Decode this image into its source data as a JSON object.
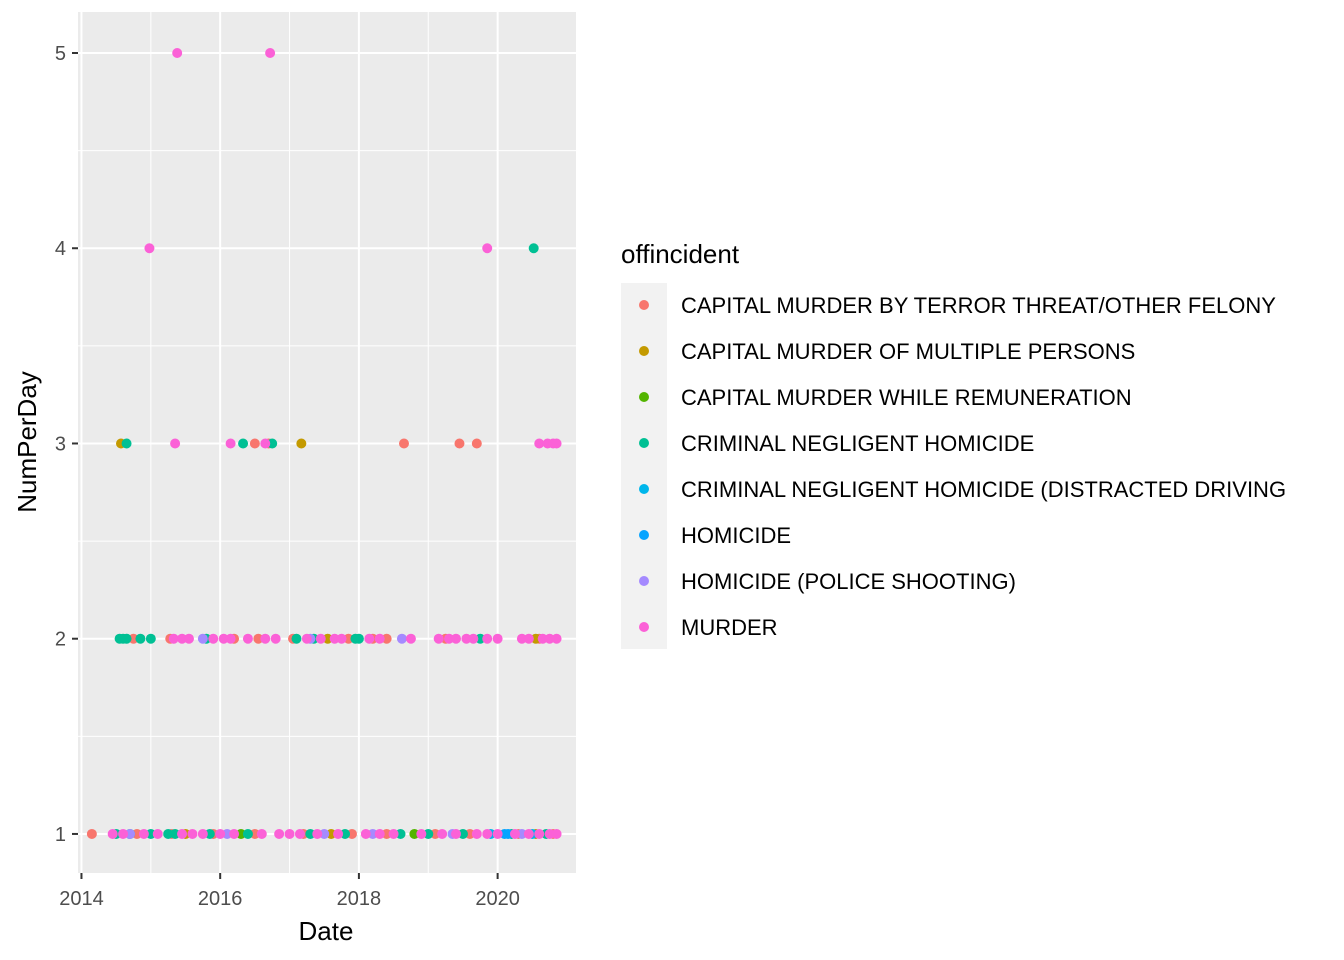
{
  "chart_data": {
    "type": "scatter",
    "xlabel": "Date",
    "ylabel": "NumPerDay",
    "x_ticks": [
      "2014",
      "2016",
      "2018",
      "2020"
    ],
    "y_ticks": [
      "1",
      "2",
      "3",
      "4",
      "5"
    ],
    "xlim": [
      2013.95,
      2021.13
    ],
    "ylim": [
      0.8,
      5.21
    ],
    "grid": true,
    "legend_position": "right",
    "legend_title": "offincident",
    "series": [
      {
        "name": "CAPITAL MURDER BY TERROR THREAT/OTHER FELONY",
        "color": "#F8766D",
        "points": [
          [
            2014.15,
            1
          ],
          [
            2014.8,
            1
          ],
          [
            2015.3,
            1
          ],
          [
            2015.9,
            1
          ],
          [
            2016.5,
            1
          ],
          [
            2017.2,
            1
          ],
          [
            2017.9,
            1
          ],
          [
            2018.4,
            1
          ],
          [
            2019.1,
            1
          ],
          [
            2019.6,
            1
          ],
          [
            2020.3,
            1
          ],
          [
            2020.8,
            1
          ],
          [
            2014.75,
            2
          ],
          [
            2015.28,
            2
          ],
          [
            2016.2,
            2
          ],
          [
            2016.55,
            2
          ],
          [
            2017.05,
            2
          ],
          [
            2017.85,
            2
          ],
          [
            2018.2,
            2
          ],
          [
            2018.4,
            2
          ],
          [
            2019.25,
            2
          ],
          [
            2020.6,
            2
          ],
          [
            2016.5,
            3
          ],
          [
            2016.7,
            3
          ],
          [
            2018.65,
            3
          ],
          [
            2019.45,
            3
          ],
          [
            2019.7,
            3
          ]
        ]
      },
      {
        "name": "CAPITAL MURDER OF MULTIPLE PERSONS",
        "color": "#C49A00",
        "points": [
          [
            2015.5,
            1
          ],
          [
            2017.6,
            1
          ],
          [
            2020.55,
            1
          ],
          [
            2017.55,
            2
          ],
          [
            2020.55,
            2
          ],
          [
            2014.57,
            3
          ],
          [
            2017.17,
            3
          ]
        ]
      },
      {
        "name": "CAPITAL MURDER WHILE REMUNERATION",
        "color": "#53B400",
        "points": [
          [
            2016.3,
            1
          ],
          [
            2018.8,
            1
          ]
        ]
      },
      {
        "name": "CRIMINAL NEGLIGENT HOMICIDE",
        "color": "#00C094",
        "points": [
          [
            2014.5,
            1
          ],
          [
            2014.7,
            1
          ],
          [
            2015.0,
            1
          ],
          [
            2015.25,
            1
          ],
          [
            2015.35,
            1
          ],
          [
            2015.85,
            1
          ],
          [
            2016.4,
            1
          ],
          [
            2017.3,
            1
          ],
          [
            2017.8,
            1
          ],
          [
            2018.6,
            1
          ],
          [
            2019.0,
            1
          ],
          [
            2019.5,
            1
          ],
          [
            2020.2,
            1
          ],
          [
            2020.7,
            1
          ],
          [
            2014.55,
            2
          ],
          [
            2014.6,
            2
          ],
          [
            2014.65,
            2
          ],
          [
            2014.85,
            2
          ],
          [
            2015.0,
            2
          ],
          [
            2015.8,
            2
          ],
          [
            2017.1,
            2
          ],
          [
            2017.35,
            2
          ],
          [
            2017.95,
            2
          ],
          [
            2018.0,
            2
          ],
          [
            2019.75,
            2
          ],
          [
            2014.65,
            3
          ],
          [
            2016.33,
            3
          ],
          [
            2016.75,
            3
          ],
          [
            2020.52,
            4
          ]
        ]
      },
      {
        "name": "CRIMINAL NEGLIGENT HOMICIDE (DISTRACTED DRIVING",
        "color": "#00B6EB",
        "points": [
          [
            2019.9,
            1
          ],
          [
            2020.5,
            1
          ]
        ]
      },
      {
        "name": "HOMICIDE",
        "color": "#06A4FF",
        "points": [
          [
            2020.1,
            1
          ],
          [
            2020.15,
            1
          ]
        ]
      },
      {
        "name": "HOMICIDE (POLICE SHOOTING)",
        "color": "#A58AFF",
        "points": [
          [
            2014.7,
            1
          ],
          [
            2016.1,
            1
          ],
          [
            2017.5,
            1
          ],
          [
            2018.2,
            1
          ],
          [
            2019.35,
            1
          ],
          [
            2020.35,
            1
          ],
          [
            2015.75,
            2
          ],
          [
            2017.3,
            2
          ],
          [
            2018.62,
            2
          ]
        ]
      },
      {
        "name": "MURDER",
        "color": "#FB61D7",
        "points": [
          [
            2014.45,
            1
          ],
          [
            2014.6,
            1
          ],
          [
            2014.9,
            1
          ],
          [
            2015.1,
            1
          ],
          [
            2015.45,
            1
          ],
          [
            2015.6,
            1
          ],
          [
            2015.75,
            1
          ],
          [
            2016.0,
            1
          ],
          [
            2016.2,
            1
          ],
          [
            2016.6,
            1
          ],
          [
            2016.85,
            1
          ],
          [
            2017.0,
            1
          ],
          [
            2017.15,
            1
          ],
          [
            2017.4,
            1
          ],
          [
            2017.7,
            1
          ],
          [
            2018.1,
            1
          ],
          [
            2018.3,
            1
          ],
          [
            2018.5,
            1
          ],
          [
            2018.9,
            1
          ],
          [
            2019.2,
            1
          ],
          [
            2019.4,
            1
          ],
          [
            2019.7,
            1
          ],
          [
            2019.85,
            1
          ],
          [
            2020.0,
            1
          ],
          [
            2020.25,
            1
          ],
          [
            2020.45,
            1
          ],
          [
            2020.6,
            1
          ],
          [
            2020.75,
            1
          ],
          [
            2020.85,
            1
          ],
          [
            2015.33,
            2
          ],
          [
            2015.45,
            2
          ],
          [
            2015.55,
            2
          ],
          [
            2015.9,
            2
          ],
          [
            2016.05,
            2
          ],
          [
            2016.15,
            2
          ],
          [
            2016.4,
            2
          ],
          [
            2016.65,
            2
          ],
          [
            2016.8,
            2
          ],
          [
            2017.25,
            2
          ],
          [
            2017.45,
            2
          ],
          [
            2017.65,
            2
          ],
          [
            2017.75,
            2
          ],
          [
            2018.15,
            2
          ],
          [
            2018.3,
            2
          ],
          [
            2018.75,
            2
          ],
          [
            2019.15,
            2
          ],
          [
            2019.3,
            2
          ],
          [
            2019.4,
            2
          ],
          [
            2019.55,
            2
          ],
          [
            2019.65,
            2
          ],
          [
            2019.85,
            2
          ],
          [
            2020.0,
            2
          ],
          [
            2020.35,
            2
          ],
          [
            2020.45,
            2
          ],
          [
            2020.65,
            2
          ],
          [
            2020.75,
            2
          ],
          [
            2020.85,
            2
          ],
          [
            2015.35,
            3
          ],
          [
            2016.15,
            3
          ],
          [
            2016.65,
            3
          ],
          [
            2020.6,
            3
          ],
          [
            2020.72,
            3
          ],
          [
            2020.8,
            3
          ],
          [
            2020.85,
            3
          ],
          [
            2014.98,
            4
          ],
          [
            2019.85,
            4
          ],
          [
            2015.38,
            5
          ],
          [
            2016.72,
            5
          ]
        ]
      }
    ]
  }
}
